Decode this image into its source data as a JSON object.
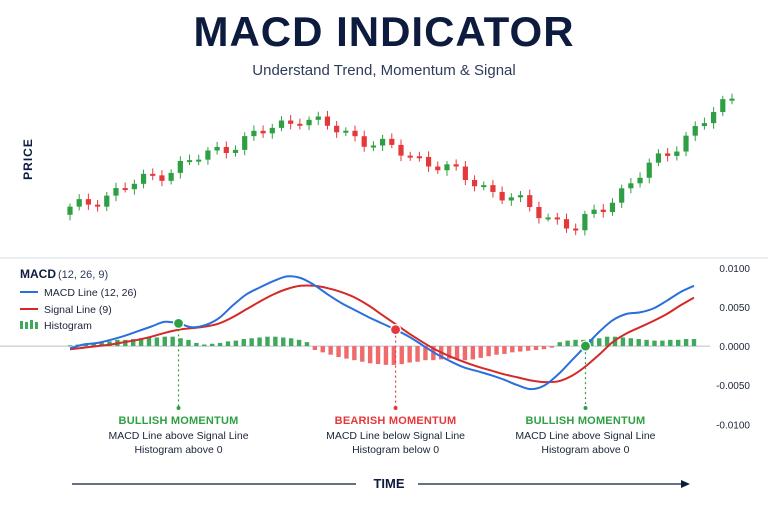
{
  "title": "MACD INDICATOR",
  "subtitle": "Understand Trend, Momentum & Signal",
  "price_axis_label": "PRICE",
  "time_axis_label": "TIME",
  "legend": {
    "title": "MACD",
    "params": "(12, 26, 9)",
    "macd_line": "MACD Line (12, 26)",
    "signal_line": "Signal Line (9)",
    "histogram": "Histogram"
  },
  "colors": {
    "up": "#2ea043",
    "down": "#e5383b",
    "macd": "#2a6fdb",
    "signal": "#d62828",
    "hist_pos": "#3fa85c",
    "hist_neg": "#ef6b6b",
    "title": "#0d1b3e"
  },
  "annotations": [
    {
      "label": "BULLISH MOMENTUM",
      "line1": "MACD Line above Signal Line",
      "line2": "Histogram above 0",
      "type": "bullish"
    },
    {
      "label": "BEARISH MOMENTUM",
      "line1": "MACD Line below Signal Line",
      "line2": "Histogram below 0",
      "type": "bearish"
    },
    {
      "label": "BULLISH MOMENTUM",
      "line1": "MACD Line above Signal Line",
      "line2": "Histogram above 0",
      "type": "bullish"
    }
  ],
  "chart_data": [
    {
      "type": "candlestick",
      "ylabel": "PRICE",
      "candles_count": 73,
      "trend_keypoints": [
        {
          "t": 0,
          "close": 20
        },
        {
          "t": 25,
          "close": 78
        },
        {
          "t": 40,
          "close": 48
        },
        {
          "t": 55,
          "close": 8
        },
        {
          "t": 72,
          "close": 90
        }
      ]
    },
    {
      "type": "line",
      "title": "MACD",
      "ylim": [
        -0.012,
        0.011
      ],
      "yticks": [
        "0.0100",
        "0.0050",
        "0.0000",
        "-0.0050",
        "-0.0100"
      ],
      "ytick_values": [
        0.01,
        0.005,
        0,
        -0.005,
        -0.01
      ],
      "macd": [
        -0.0003,
        0.0002,
        0.0004,
        0.0008,
        0.0013,
        0.0019,
        0.0025,
        0.0031,
        0.0029,
        0.0024,
        0.0027,
        0.0036,
        0.0052,
        0.0066,
        0.0075,
        0.0083,
        0.0089,
        0.0087,
        0.0078,
        0.0066,
        0.0055,
        0.0046,
        0.0037,
        0.0029,
        0.0021,
        0.0012,
        0.0001,
        -0.001,
        -0.0019,
        -0.0027,
        -0.0032,
        -0.0037,
        -0.0043,
        -0.005,
        -0.0055,
        -0.005,
        -0.0036,
        -0.0018,
        0.0,
        0.0018,
        0.0033,
        0.0041,
        0.0043,
        0.0048,
        0.0058,
        0.0069,
        0.0077
      ],
      "signal": [
        -0.0004,
        -0.0002,
        0.0,
        0.0002,
        0.0005,
        0.0008,
        0.0012,
        0.0017,
        0.0021,
        0.0023,
        0.0025,
        0.0029,
        0.0037,
        0.0047,
        0.0057,
        0.0066,
        0.0073,
        0.0077,
        0.0077,
        0.0074,
        0.0069,
        0.0062,
        0.0052,
        0.004,
        0.0028,
        0.0016,
        0.0005,
        -0.0005,
        -0.0013,
        -0.002,
        -0.0026,
        -0.0031,
        -0.0036,
        -0.004,
        -0.0044,
        -0.0046,
        -0.0045,
        -0.0038,
        -0.0026,
        -0.0011,
        0.0005,
        0.0016,
        0.0024,
        0.0032,
        0.0041,
        0.0052,
        0.0062
      ],
      "histogram": [
        0.0001,
        0.0002,
        0.0003,
        0.0004,
        0.0005,
        0.0006,
        0.0008,
        0.0008,
        0.0009,
        0.001,
        0.0011,
        0.0011,
        0.0012,
        0.0012,
        0.001,
        0.0008,
        0.0004,
        0.0002,
        0.0003,
        0.0004,
        0.0006,
        0.0007,
        0.0009,
        0.001,
        0.0011,
        0.0012,
        0.0012,
        0.0011,
        0.001,
        0.0008,
        0.0005,
        -0.0005,
        -0.0008,
        -0.0011,
        -0.0014,
        -0.0016,
        -0.0018,
        -0.002,
        -0.0022,
        -0.0023,
        -0.0024,
        -0.0024,
        -0.0023,
        -0.0021,
        -0.002,
        -0.0018,
        -0.0018,
        -0.0017,
        -0.0016,
        -0.0017,
        -0.0018,
        -0.0017,
        -0.0015,
        -0.0013,
        -0.0011,
        -0.001,
        -0.0008,
        -0.0007,
        -0.0006,
        -0.0005,
        -0.0004,
        -0.0002,
        0.0005,
        0.0007,
        0.0008,
        0.0008,
        0.0009,
        0.001,
        0.0012,
        0.0012,
        0.0011,
        0.001,
        0.0009,
        0.0008,
        0.0007,
        0.0007,
        0.0008,
        0.0008,
        0.0009,
        0.0009
      ],
      "crossovers": [
        {
          "type": "bullish",
          "index": 8
        },
        {
          "type": "bearish",
          "index": 24
        },
        {
          "type": "bullish",
          "index": 38
        }
      ]
    }
  ]
}
